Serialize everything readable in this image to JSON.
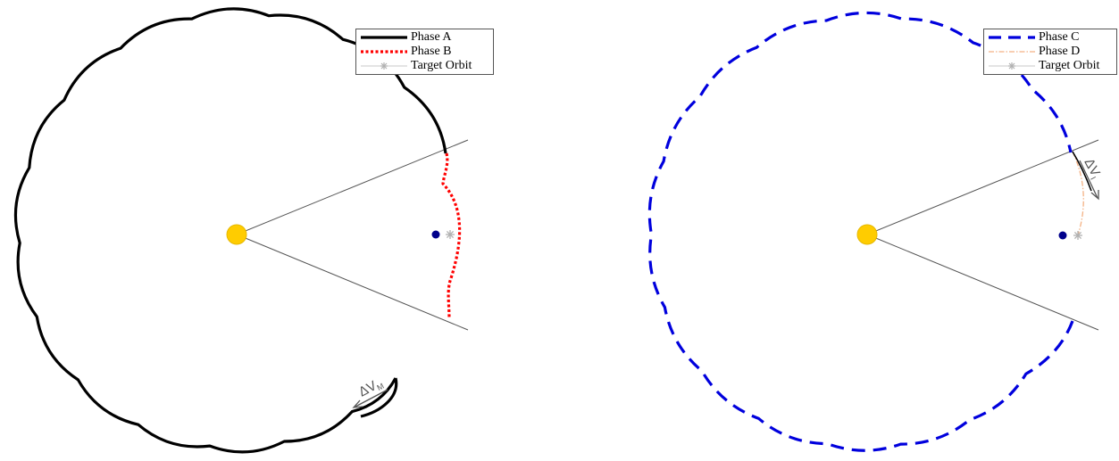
{
  "colors": {
    "sun": "#FFCC00",
    "sun_outline": "#E6B800",
    "spacecraft": "#00008B",
    "target_star": "#B0B0B0",
    "sector_lines": "#555555",
    "phase_a": "#000000",
    "phase_b": "#FF0000",
    "phase_c": "#0000DD",
    "phase_d": "#F4B183",
    "delta_v_arrow": "#555555"
  },
  "left_panel": {
    "legend": [
      {
        "label": "Phase A",
        "style": "solid-black-icon"
      },
      {
        "label": "Phase B",
        "style": "dotted-red-icon"
      },
      {
        "label": "Target Orbit",
        "style": "star-gray-icon"
      }
    ],
    "delta_v_label": "ΔV",
    "delta_v_sub": "M"
  },
  "right_panel": {
    "legend": [
      {
        "label": "Phase C",
        "style": "dashed-blue-icon"
      },
      {
        "label": "Phase D",
        "style": "dashdot-orange-icon"
      },
      {
        "label": "Target Orbit",
        "style": "star-gray-icon"
      }
    ],
    "delta_v_label": "ΔV",
    "delta_v_sub": "I"
  }
}
